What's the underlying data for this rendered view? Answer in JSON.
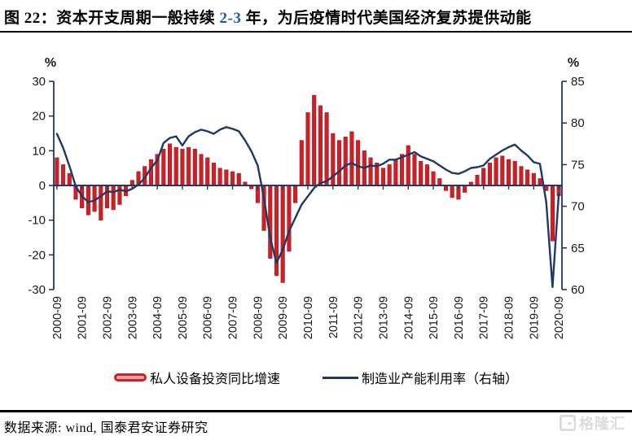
{
  "title": {
    "prefix": "图 22：资本开支周期一般持续 ",
    "highlight": "2-3",
    "suffix": " 年，为后疫情时代美国经济复苏提供动能"
  },
  "footer": {
    "source": "数据来源: wind, 国泰君安证券研究",
    "watermark": "格隆汇"
  },
  "colors": {
    "bar_fill": "#cd2026",
    "bar_border": "#a5171c",
    "line": "#1f3864",
    "axis": "#1f3864",
    "tick_text": "#1a1a1a",
    "title_highlight": "#2459a8",
    "watermark": "#dcdcdc"
  },
  "chart_data": {
    "type": "bar",
    "subtype": "bar+line dual-axis combo",
    "grid": false,
    "legend_position": "bottom",
    "x_tick_every": 4,
    "categories": [
      "2000-09",
      "2000-12",
      "2001-03",
      "2001-06",
      "2001-09",
      "2001-12",
      "2002-03",
      "2002-06",
      "2002-09",
      "2002-12",
      "2003-03",
      "2003-06",
      "2003-09",
      "2003-12",
      "2004-03",
      "2004-06",
      "2004-09",
      "2004-12",
      "2005-03",
      "2005-06",
      "2005-09",
      "2005-12",
      "2006-03",
      "2006-06",
      "2006-09",
      "2006-12",
      "2007-03",
      "2007-06",
      "2007-09",
      "2007-12",
      "2008-03",
      "2008-06",
      "2008-09",
      "2008-12",
      "2009-03",
      "2009-06",
      "2009-09",
      "2009-12",
      "2010-03",
      "2010-06",
      "2010-09",
      "2010-12",
      "2011-03",
      "2011-06",
      "2011-09",
      "2011-12",
      "2012-03",
      "2012-06",
      "2012-09",
      "2012-12",
      "2013-03",
      "2013-06",
      "2013-09",
      "2013-12",
      "2014-03",
      "2014-06",
      "2014-09",
      "2014-12",
      "2015-03",
      "2015-06",
      "2015-09",
      "2015-12",
      "2016-03",
      "2016-06",
      "2016-09",
      "2016-12",
      "2017-03",
      "2017-06",
      "2017-09",
      "2017-12",
      "2018-03",
      "2018-06",
      "2018-09",
      "2018-12",
      "2019-03",
      "2019-06",
      "2019-09",
      "2019-12",
      "2020-03",
      "2020-06",
      "2020-09"
    ],
    "x_tick_labels": [
      "2000-09",
      "2001-09",
      "2002-09",
      "2003-09",
      "2004-09",
      "2005-09",
      "2006-09",
      "2007-09",
      "2008-09",
      "2009-09",
      "2010-09",
      "2011-09",
      "2012-09",
      "2013-09",
      "2014-09",
      "2015-09",
      "2016-09",
      "2017-09",
      "2018-09",
      "2019-09",
      "2020-09"
    ],
    "series": [
      {
        "name": "私人设备投资同比增速",
        "type": "bar",
        "axis": "left",
        "color": "#cd2026",
        "values": [
          8,
          6,
          3.5,
          -4,
          -6.5,
          -8.5,
          -7.5,
          -10,
          -6.5,
          -7,
          -5.5,
          -3,
          1.5,
          4,
          5.5,
          7.5,
          9,
          10.5,
          12,
          11,
          10.5,
          11,
          10.5,
          9,
          8,
          6.5,
          5,
          4.5,
          4,
          3.5,
          1,
          -1,
          -5,
          -13,
          -21,
          -26,
          -28,
          -19,
          -5,
          13,
          21,
          26,
          23,
          21,
          15,
          13,
          14,
          15.5,
          13,
          10,
          8,
          6.5,
          5,
          6,
          7.5,
          9,
          11.5,
          9,
          7,
          6,
          4,
          2,
          -1.5,
          -3.5,
          -4,
          -2,
          1,
          3,
          5,
          6.5,
          8,
          8.5,
          7.5,
          7,
          5.5,
          4.5,
          3.5,
          2,
          -1.5,
          -16,
          -3
        ]
      },
      {
        "name": "制造业产能利用率（右轴）",
        "type": "line",
        "axis": "right",
        "color": "#1f3864",
        "values": [
          78.7,
          77.0,
          74.8,
          72.4,
          71.2,
          70.5,
          70.7,
          71.2,
          71.8,
          71.7,
          72.0,
          71.8,
          72.1,
          72.6,
          73.4,
          74.6,
          75.5,
          77.6,
          78.2,
          78.4,
          77.3,
          78.4,
          78.9,
          79.2,
          79.0,
          78.7,
          79.2,
          79.5,
          79.3,
          79.0,
          77.9,
          76.6,
          74.9,
          71.0,
          66.2,
          63.2,
          64.8,
          67.0,
          68.6,
          70.2,
          71.2,
          72.2,
          72.8,
          73.0,
          73.6,
          74.2,
          74.9,
          75.2,
          74.8,
          74.6,
          74.9,
          74.8,
          75.1,
          75.6,
          75.6,
          75.9,
          76.2,
          76.5,
          76.0,
          75.7,
          75.4,
          74.9,
          74.4,
          74.0,
          73.9,
          74.2,
          74.6,
          74.7,
          74.9,
          75.7,
          76.2,
          76.7,
          77.1,
          77.4,
          76.7,
          76.1,
          75.3,
          75.1,
          70.5,
          60.3,
          71.5
        ]
      }
    ],
    "left_axis": {
      "label": "%",
      "min": -30,
      "max": 30,
      "ticks": [
        30,
        20,
        10,
        0,
        -10,
        -20,
        -30
      ]
    },
    "right_axis": {
      "label": "%",
      "min": 60,
      "max": 85,
      "ticks": [
        85,
        80,
        75,
        70,
        65,
        60
      ]
    }
  }
}
